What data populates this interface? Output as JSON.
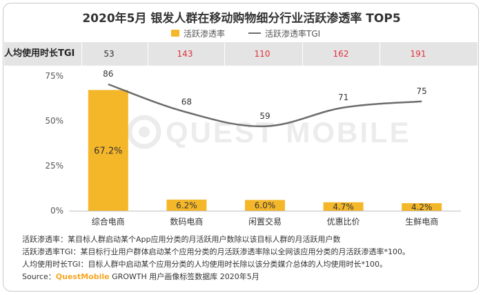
{
  "title": "2020年5月 银发人群在移动购物细分行业活跃渗透率 TOP5",
  "legend": {
    "bar_label": "活跃渗透率",
    "line_label": "活跃渗透率TGI"
  },
  "tgi_row": {
    "label": "人均使用时长TGI",
    "values": [
      "53",
      "143",
      "110",
      "162",
      "191"
    ],
    "colors": [
      "#333333",
      "#e0303a",
      "#e0303a",
      "#e0303a",
      "#e0303a"
    ]
  },
  "chart_data": {
    "type": "bar",
    "categories": [
      "综合电商",
      "数码电商",
      "闲置交易",
      "优惠比价",
      "生鲜电商"
    ],
    "series": [
      {
        "name": "活跃渗透率",
        "type": "bar",
        "values": [
          67.2,
          6.2,
          6.0,
          4.7,
          4.2
        ],
        "labels": [
          "67.2%",
          "6.2%",
          "6.0%",
          "4.7%",
          "4.2%"
        ],
        "color": "#f5b72a"
      },
      {
        "name": "活跃渗透率TGI",
        "type": "line",
        "values": [
          86,
          68,
          59,
          71,
          75
        ],
        "color": "#6b6b6b"
      }
    ],
    "y_ticks": [
      "0%",
      "25%",
      "50%",
      "75%"
    ],
    "ylim": [
      0,
      75
    ],
    "grid": false
  },
  "watermark": "QUEST MOBILE",
  "notes": {
    "line1": "活跃渗透率：某目标人群启动某个App应用分类的月活跃用户数除以该目标人群的月活跃用户数",
    "line2": "活跃渗透率TGI：某目标行业用户群体启动某个应用分类的月活跃渗透率除以全网该应用分类的月活跃渗透率*100。",
    "line3": "人均使用时长TGI：目标人群中启动某个应用分类的人均使用时长除以该分类媒介总体的人均使用时长*100。",
    "source_prefix": "Source：",
    "source_brand": "QuestMobile",
    "source_suffix": " GROWTH 用户画像标签数据库 2020年5月"
  }
}
